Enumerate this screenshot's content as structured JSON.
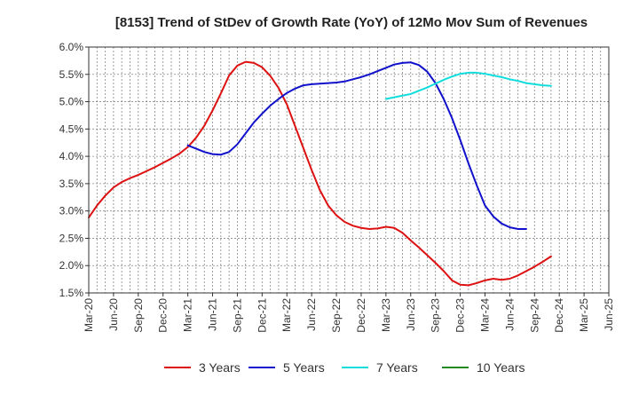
{
  "chart_data": {
    "type": "line",
    "title": "[8153]  Trend of StDev of Growth Rate (YoY) of 12Mo Mov Sum of Revenues",
    "xlabel": "",
    "ylabel": "",
    "ylim": [
      1.5,
      6.0
    ],
    "y_ticks": [
      1.5,
      2.0,
      2.5,
      3.0,
      3.5,
      4.0,
      4.5,
      5.0,
      5.5,
      6.0
    ],
    "y_tick_labels": [
      "1.5%",
      "2.0%",
      "2.5%",
      "3.0%",
      "3.5%",
      "4.0%",
      "4.5%",
      "5.0%",
      "5.5%",
      "6.0%"
    ],
    "x_tick_labels": [
      "Mar-20",
      "Jun-20",
      "Sep-20",
      "Dec-20",
      "Mar-21",
      "Jun-21",
      "Sep-21",
      "Dec-21",
      "Mar-22",
      "Jun-22",
      "Sep-22",
      "Dec-22",
      "Mar-23",
      "Jun-23",
      "Sep-23",
      "Dec-23",
      "Mar-24",
      "Jun-24",
      "Sep-24",
      "Dec-24",
      "Mar-25",
      "Jun-25"
    ],
    "grid": true,
    "legend_position": "bottom",
    "series": [
      {
        "name": "3 Years",
        "color": "#dd1111",
        "start_index": 0,
        "values": [
          2.88,
          3.1,
          3.28,
          3.43,
          3.53,
          3.6,
          3.66,
          3.73,
          3.8,
          3.88,
          3.96,
          4.05,
          4.17,
          4.34,
          4.56,
          4.84,
          5.15,
          5.48,
          5.66,
          5.73,
          5.71,
          5.63,
          5.47,
          5.25,
          4.95,
          4.55,
          4.15,
          3.75,
          3.38,
          3.1,
          2.92,
          2.8,
          2.73,
          2.69,
          2.67,
          2.68,
          2.71,
          2.69,
          2.6,
          2.46,
          2.33,
          2.19,
          2.05,
          1.9,
          1.73,
          1.65,
          1.64,
          1.68,
          1.73,
          1.76,
          1.74,
          1.76,
          1.82,
          1.9,
          1.98,
          2.07,
          2.17
        ]
      },
      {
        "name": "5 Years",
        "color": "#1111cc",
        "start_index": 12,
        "values": [
          4.2,
          4.14,
          4.08,
          4.04,
          4.03,
          4.08,
          4.22,
          4.42,
          4.62,
          4.78,
          4.93,
          5.05,
          5.16,
          5.24,
          5.3,
          5.32,
          5.33,
          5.34,
          5.35,
          5.37,
          5.41,
          5.45,
          5.5,
          5.56,
          5.62,
          5.68,
          5.71,
          5.72,
          5.67,
          5.55,
          5.34,
          5.05,
          4.7,
          4.3,
          3.87,
          3.47,
          3.1,
          2.9,
          2.77,
          2.7,
          2.67,
          2.67
        ]
      },
      {
        "name": "7 Years",
        "color": "#11dddd",
        "start_index": 36,
        "values": [
          5.05,
          5.08,
          5.11,
          5.14,
          5.2,
          5.26,
          5.33,
          5.4,
          5.46,
          5.51,
          5.53,
          5.53,
          5.51,
          5.48,
          5.45,
          5.41,
          5.38,
          5.34,
          5.32,
          5.3,
          5.29
        ]
      },
      {
        "name": "10 Years",
        "color": "#228822",
        "start_index": 0,
        "values": []
      }
    ]
  }
}
